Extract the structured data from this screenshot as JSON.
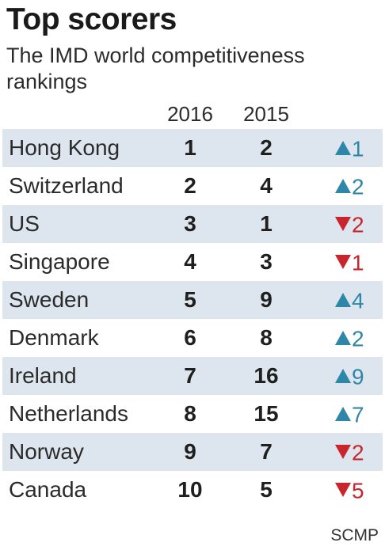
{
  "title": "Top scorers",
  "subtitle": "The IMD world competitiveness rankings",
  "source": "SCMP",
  "colors": {
    "row_shade": "#dde6ee",
    "up": "#2e86a8",
    "down": "#c8252c"
  },
  "chart_data": {
    "type": "table",
    "title": "Top scorers",
    "subtitle": "The IMD world competitiveness rankings",
    "columns": [
      "2016",
      "2015",
      ""
    ],
    "rows": [
      {
        "country": "Hong Kong",
        "rank_2016": "1",
        "rank_2015": "2",
        "direction": "up",
        "change": "1"
      },
      {
        "country": "Switzerland",
        "rank_2016": "2",
        "rank_2015": "4",
        "direction": "up",
        "change": "2"
      },
      {
        "country": "US",
        "rank_2016": "3",
        "rank_2015": "1",
        "direction": "down",
        "change": "2"
      },
      {
        "country": "Singapore",
        "rank_2016": "4",
        "rank_2015": "3",
        "direction": "down",
        "change": "1"
      },
      {
        "country": "Sweden",
        "rank_2016": "5",
        "rank_2015": "9",
        "direction": "up",
        "change": "4"
      },
      {
        "country": "Denmark",
        "rank_2016": "6",
        "rank_2015": "8",
        "direction": "up",
        "change": "2"
      },
      {
        "country": "Ireland",
        "rank_2016": "7",
        "rank_2015": "16",
        "direction": "up",
        "change": "9"
      },
      {
        "country": "Netherlands",
        "rank_2016": "8",
        "rank_2015": "15",
        "direction": "up",
        "change": "7"
      },
      {
        "country": "Norway",
        "rank_2016": "9",
        "rank_2015": "7",
        "direction": "down",
        "change": "2"
      },
      {
        "country": "Canada",
        "rank_2016": "10",
        "rank_2015": "5",
        "direction": "down",
        "change": "5"
      }
    ]
  }
}
